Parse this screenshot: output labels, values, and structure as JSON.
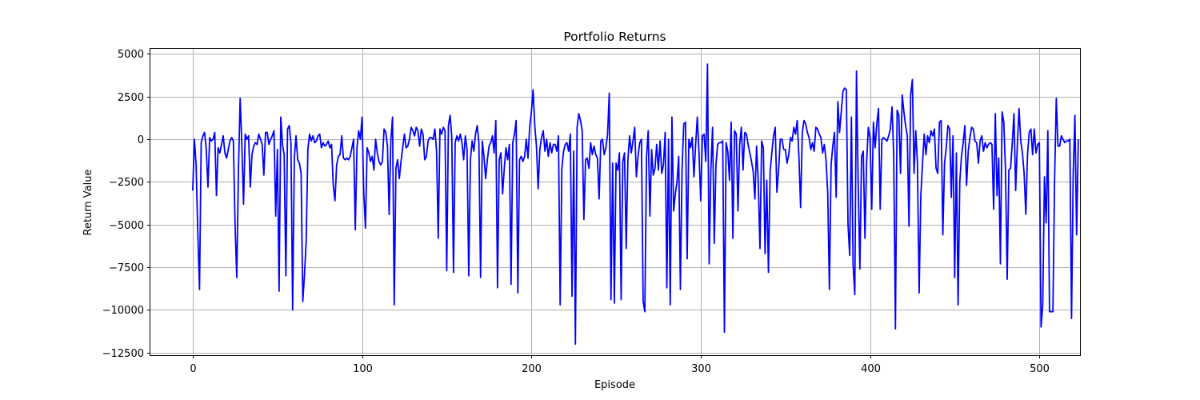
{
  "chart_data": {
    "type": "line",
    "title": "Portfolio Returns",
    "xlabel": "Episode",
    "ylabel": "Return Value",
    "xlim": [
      -25,
      524
    ],
    "ylim": [
      -12650,
      5300
    ],
    "xticks": [
      0,
      100,
      200,
      300,
      400,
      500
    ],
    "yticks": [
      5000,
      2500,
      0,
      -2500,
      -5000,
      -7500,
      -10000,
      -12500
    ],
    "grid": true,
    "legend": "none",
    "series": [
      {
        "color": "#0000ff",
        "x_start": 0,
        "x_step": 1,
        "values": [
          -3000,
          0,
          -1500,
          -5500,
          -8800,
          -200,
          200,
          400,
          -600,
          -2800,
          100,
          -100,
          0,
          400,
          -3300,
          -500,
          -800,
          -300,
          200,
          -800,
          -1100,
          -600,
          -100,
          100,
          -100,
          -5000,
          -8100,
          -1800,
          2400,
          -300,
          -3800,
          300,
          0,
          200,
          -2800,
          -900,
          -400,
          -200,
          -300,
          300,
          0,
          -300,
          -2100,
          400,
          400,
          -300,
          0,
          200,
          500,
          -4500,
          -600,
          -8900,
          1300,
          -300,
          -900,
          -8000,
          600,
          800,
          -200,
          -10000,
          -1100,
          200,
          -1200,
          -1400,
          -2000,
          -9500,
          -7900,
          -6000,
          -600,
          300,
          -100,
          200,
          -200,
          -100,
          200,
          300,
          -500,
          -200,
          -400,
          -300,
          -100,
          -500,
          -300,
          -2700,
          -3600,
          -1500,
          -1000,
          -900,
          200,
          -1100,
          -1200,
          -1100,
          -1200,
          -1000,
          -500,
          0,
          -5300,
          -500,
          500,
          0,
          1300,
          -3100,
          -5200,
          -500,
          -800,
          -1300,
          -1000,
          -1800,
          0,
          -800,
          -1300,
          -1500,
          -1300,
          600,
          400,
          -400,
          -4400,
          -100,
          1300,
          -9700,
          -1700,
          -1200,
          -2300,
          -1300,
          -500,
          300,
          -500,
          -400,
          0,
          700,
          500,
          200,
          700,
          500,
          -400,
          600,
          300,
          -1200,
          -1000,
          -100,
          100,
          100,
          0,
          600,
          -700,
          -5800,
          600,
          300,
          700,
          500,
          -7700,
          800,
          1400,
          100,
          -7800,
          -200,
          200,
          -100,
          300,
          -200,
          -1200,
          200,
          -600,
          -8000,
          -1200,
          -100,
          -700,
          300,
          800,
          -200,
          -8100,
          -100,
          -1000,
          -2300,
          -1200,
          -400,
          -200,
          200,
          -800,
          1100,
          -8700,
          -1200,
          -800,
          -3200,
          -1700,
          -500,
          -1200,
          -300,
          -8500,
          -200,
          300,
          1100,
          -9000,
          -1200,
          -1000,
          -1300,
          -1000,
          0,
          -1100,
          700,
          1600,
          2900,
          800,
          -400,
          -2900,
          -600,
          100,
          500,
          -700,
          0,
          -1000,
          -200,
          -800,
          -300,
          -300,
          -700,
          200,
          -9700,
          -1700,
          -700,
          -300,
          -200,
          -700,
          300,
          -9200,
          -700,
          -12000,
          700,
          1500,
          1100,
          500,
          -4700,
          -1200,
          -1100,
          -1700,
          -200,
          -900,
          -400,
          -900,
          -1100,
          -3500,
          -100,
          0,
          -900,
          -500,
          300,
          2700,
          -9400,
          -1400,
          -9600,
          -1400,
          -1800,
          -800,
          -9400,
          -1300,
          -800,
          -6400,
          -1200,
          200,
          -800,
          -100,
          700,
          -2200,
          -1000,
          -200,
          0,
          -9500,
          -10100,
          -1000,
          500,
          -4500,
          -600,
          -2100,
          -1700,
          -300,
          -1800,
          -100,
          -2000,
          -1500,
          400,
          -8700,
          0,
          -9700,
          1300,
          -4200,
          -3200,
          -2500,
          -1000,
          -8800,
          -1700,
          900,
          1000,
          -7000,
          0,
          -500,
          100,
          -2200,
          -300,
          1300,
          -800,
          -3600,
          200,
          300,
          -1300,
          4400,
          -7300,
          -1800,
          700,
          -6100,
          -1500,
          -300,
          -200,
          -200,
          -100,
          -11300,
          -200,
          -700,
          -2400,
          1000,
          -5800,
          500,
          300,
          -4200,
          -300,
          700,
          -1800,
          400,
          300,
          -300,
          -800,
          -1300,
          -1900,
          -3500,
          -400,
          -2500,
          -6400,
          -100,
          -500,
          -6700,
          -2400,
          -7800,
          -1900,
          -800,
          200,
          700,
          -3100,
          -1800,
          0,
          0,
          -600,
          -600,
          -1400,
          -900,
          100,
          -100,
          700,
          300,
          1100,
          -1000,
          -4000,
          400,
          1100,
          900,
          400,
          100,
          -600,
          -200,
          -700,
          700,
          600,
          300,
          100,
          -800,
          -300,
          -1200,
          -3100,
          -8800,
          -1500,
          -400,
          400,
          -3400,
          2200,
          400,
          1600,
          2800,
          3000,
          2900,
          -5000,
          -6800,
          1300,
          -7400,
          -9100,
          4000,
          -2600,
          -7600,
          -1000,
          -700,
          -5800,
          -1300,
          700,
          100,
          -4100,
          1000,
          -500,
          900,
          1800,
          -4100,
          0,
          100,
          0,
          -100,
          200,
          600,
          1900,
          -1000,
          -11100,
          1700,
          1400,
          -2000,
          2600,
          1600,
          800,
          200,
          -5100,
          2600,
          3500,
          -2000,
          500,
          -1400,
          -9000,
          -3300,
          -1400,
          300,
          -900,
          200,
          -200,
          500,
          200,
          600,
          -1700,
          -2000,
          1000,
          1100,
          -5600,
          -1400,
          -500,
          800,
          600,
          -3400,
          200,
          -8100,
          -800,
          -9700,
          -2500,
          -1000,
          -200,
          800,
          -2700,
          -700,
          100,
          700,
          600,
          -100,
          -200,
          -1400,
          -100,
          200,
          -700,
          -200,
          -500,
          -300,
          -200,
          -300,
          -4100,
          1500,
          -3300,
          -1100,
          -7300,
          1600,
          1000,
          -1800,
          -8200,
          -1800,
          -1700,
          -200,
          1500,
          -3000,
          -300,
          1800,
          -100,
          -800,
          -2000,
          -4400,
          -900,
          400,
          600,
          -900,
          600,
          -800,
          -300,
          -200,
          -11000,
          -9700,
          -2200,
          -4900,
          500,
          -10100,
          -10100,
          -10100,
          -2300,
          2400,
          -400,
          -400,
          200,
          0,
          -200,
          -100,
          -100,
          0,
          -10500,
          -2000,
          1400,
          -5600,
          0
        ]
      }
    ]
  }
}
